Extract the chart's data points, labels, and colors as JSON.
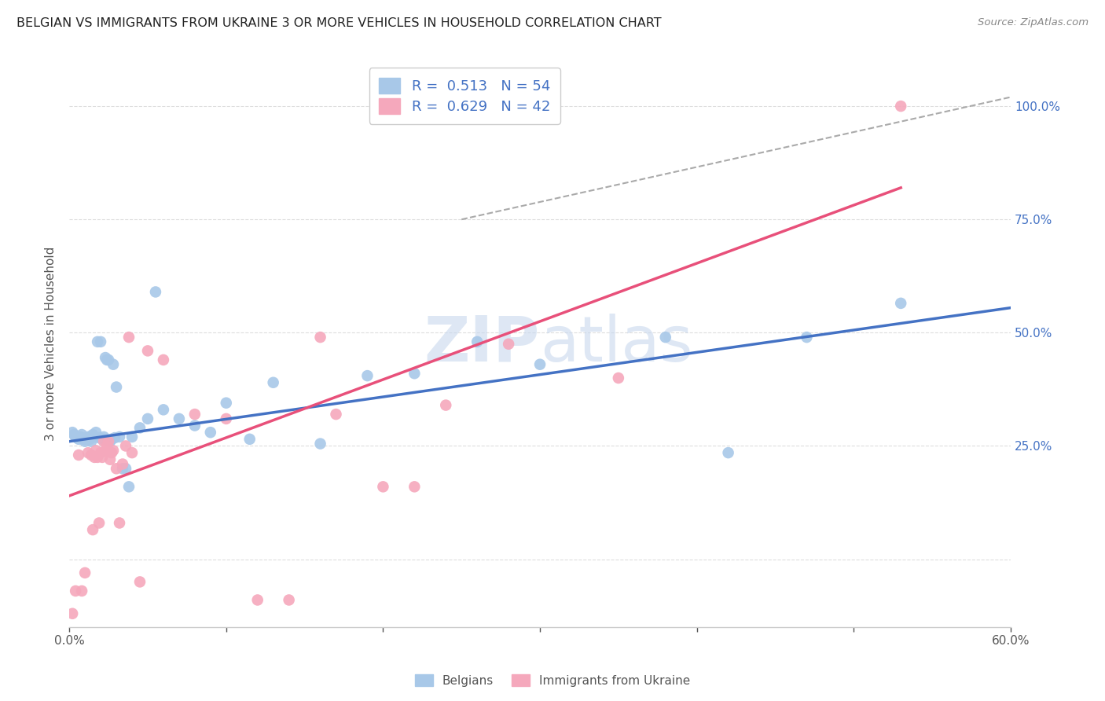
{
  "title": "BELGIAN VS IMMIGRANTS FROM UKRAINE 3 OR MORE VEHICLES IN HOUSEHOLD CORRELATION CHART",
  "source": "Source: ZipAtlas.com",
  "ylabel": "3 or more Vehicles in Household",
  "xlim": [
    0.0,
    0.6
  ],
  "ylim": [
    -0.15,
    1.1
  ],
  "xticks": [
    0.0,
    0.1,
    0.2,
    0.3,
    0.4,
    0.5,
    0.6
  ],
  "xticklabels": [
    "0.0%",
    "",
    "",
    "",
    "",
    "",
    "60.0%"
  ],
  "ytick_positions": [
    0.0,
    0.25,
    0.5,
    0.75,
    1.0
  ],
  "ytick_labels_right": [
    "",
    "25.0%",
    "50.0%",
    "75.0%",
    "100.0%"
  ],
  "belgian_color": "#a8c8e8",
  "ukraine_color": "#f5a8bc",
  "belgian_R": 0.513,
  "belgian_N": 54,
  "ukraine_R": 0.629,
  "ukraine_N": 42,
  "blue_line_color": "#4472c4",
  "pink_line_color": "#e8507a",
  "grid_color": "#dddddd",
  "watermark_color": "#c8d8ee",
  "belgians_label": "Belgians",
  "ukraine_label": "Immigrants from Ukraine",
  "belgian_points_x": [
    0.002,
    0.003,
    0.004,
    0.005,
    0.006,
    0.007,
    0.008,
    0.009,
    0.01,
    0.01,
    0.011,
    0.012,
    0.013,
    0.014,
    0.015,
    0.016,
    0.017,
    0.018,
    0.019,
    0.02,
    0.021,
    0.022,
    0.023,
    0.024,
    0.025,
    0.026,
    0.027,
    0.028,
    0.029,
    0.03,
    0.032,
    0.034,
    0.036,
    0.038,
    0.04,
    0.045,
    0.05,
    0.055,
    0.06,
    0.07,
    0.08,
    0.09,
    0.1,
    0.115,
    0.13,
    0.16,
    0.19,
    0.22,
    0.26,
    0.3,
    0.38,
    0.42,
    0.47,
    0.53
  ],
  "belgian_points_y": [
    0.28,
    0.275,
    0.27,
    0.268,
    0.265,
    0.27,
    0.275,
    0.265,
    0.26,
    0.265,
    0.268,
    0.27,
    0.265,
    0.26,
    0.275,
    0.27,
    0.28,
    0.48,
    0.268,
    0.48,
    0.265,
    0.27,
    0.445,
    0.44,
    0.44,
    0.26,
    0.265,
    0.43,
    0.268,
    0.38,
    0.27,
    0.2,
    0.2,
    0.16,
    0.27,
    0.29,
    0.31,
    0.59,
    0.33,
    0.31,
    0.295,
    0.28,
    0.345,
    0.265,
    0.39,
    0.255,
    0.405,
    0.41,
    0.48,
    0.43,
    0.49,
    0.235,
    0.49,
    0.565
  ],
  "ukraine_points_x": [
    0.002,
    0.004,
    0.006,
    0.008,
    0.01,
    0.012,
    0.014,
    0.015,
    0.016,
    0.017,
    0.018,
    0.019,
    0.02,
    0.021,
    0.022,
    0.023,
    0.024,
    0.025,
    0.026,
    0.027,
    0.028,
    0.03,
    0.032,
    0.034,
    0.036,
    0.038,
    0.04,
    0.045,
    0.05,
    0.06,
    0.08,
    0.1,
    0.12,
    0.14,
    0.16,
    0.17,
    0.2,
    0.22,
    0.24,
    0.28,
    0.35,
    0.53
  ],
  "ukraine_points_y": [
    -0.12,
    -0.07,
    0.23,
    -0.07,
    -0.03,
    0.235,
    0.23,
    0.065,
    0.225,
    0.24,
    0.225,
    0.08,
    0.235,
    0.225,
    0.26,
    0.24,
    0.25,
    0.26,
    0.22,
    0.235,
    0.24,
    0.2,
    0.08,
    0.21,
    0.25,
    0.49,
    0.235,
    -0.05,
    0.46,
    0.44,
    0.32,
    0.31,
    -0.09,
    -0.09,
    0.49,
    0.32,
    0.16,
    0.16,
    0.34,
    0.475,
    0.4,
    1.0
  ],
  "blue_line_x": [
    0.0,
    0.6
  ],
  "blue_line_y": [
    0.26,
    0.555
  ],
  "pink_line_x": [
    0.0,
    0.53
  ],
  "pink_line_y": [
    0.14,
    0.82
  ],
  "diag_line_x": [
    0.25,
    0.6
  ],
  "diag_line_y": [
    0.75,
    1.02
  ]
}
